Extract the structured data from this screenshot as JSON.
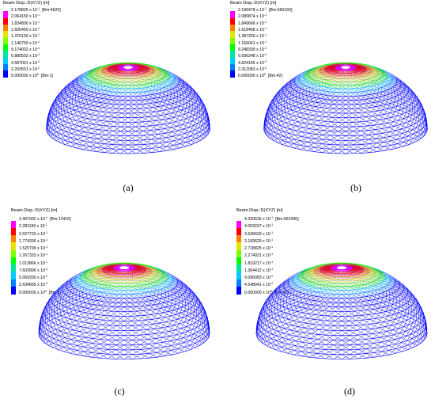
{
  "colors": [
    "#ff00ff",
    "#ff0000",
    "#ff7f00",
    "#e5e500",
    "#7fff00",
    "#00ff00",
    "#00e5a0",
    "#00ccff",
    "#0080ff",
    "#0000ff"
  ],
  "panels": [
    {
      "caption": "(a)",
      "legend_title": "Beam Disp.:D(XYZ)  [m]",
      "ticks": [
        {
          "mant": "2.178826",
          "exp": "-1",
          "tag": "[Bm:4620]"
        },
        {
          "mant": "2.064150",
          "exp": "-1",
          "tag": ""
        },
        {
          "mant": "1.834800",
          "exp": "-1",
          "tag": ""
        },
        {
          "mant": "1.605450",
          "exp": "-1",
          "tag": ""
        },
        {
          "mant": "1.376100",
          "exp": "-1",
          "tag": ""
        },
        {
          "mant": "1.146750",
          "exp": "-1",
          "tag": ""
        },
        {
          "mant": "9.174002",
          "exp": "-2",
          "tag": ""
        },
        {
          "mant": "6.880502",
          "exp": "-2",
          "tag": ""
        },
        {
          "mant": "4.587001",
          "exp": "-2",
          "tag": ""
        },
        {
          "mant": "2.293501",
          "exp": "-2",
          "tag": ""
        },
        {
          "mant": "0.000000",
          "exp": "0",
          "tag": "[Bm:1]"
        }
      ]
    },
    {
      "caption": "(b)",
      "legend_title": "Beam Disp.:D(XYZ)  [m]",
      "ticks": [
        {
          "mant": "2.196478",
          "exp": "-1",
          "tag": "[Bm:560160]"
        },
        {
          "mant": "2.080874",
          "exp": "-1",
          "tag": ""
        },
        {
          "mant": "1.849666",
          "exp": "-1",
          "tag": ""
        },
        {
          "mant": "1.618458",
          "exp": "-1",
          "tag": ""
        },
        {
          "mant": "1.387250",
          "exp": "-1",
          "tag": ""
        },
        {
          "mant": "1.156041",
          "exp": "-1",
          "tag": ""
        },
        {
          "mant": "9.248330",
          "exp": "-2",
          "tag": ""
        },
        {
          "mant": "6.936248",
          "exp": "-2",
          "tag": ""
        },
        {
          "mant": "4.624165",
          "exp": "-2",
          "tag": ""
        },
        {
          "mant": "2.312083",
          "exp": "-2",
          "tag": ""
        },
        {
          "mant": "0.000000",
          "exp": "0",
          "tag": "[Bm:42]"
        }
      ]
    },
    {
      "caption": "(c)",
      "legend_title": "Beam Disp.:D(XYZ)  [m]",
      "ticks": [
        {
          "mant": "2.407932",
          "exp": "-1",
          "tag": "[Bm:12416]"
        },
        {
          "mant": "2.281199",
          "exp": "-1",
          "tag": ""
        },
        {
          "mant": "2.027732",
          "exp": "-1",
          "tag": ""
        },
        {
          "mant": "1.774266",
          "exp": "-1",
          "tag": ""
        },
        {
          "mant": "1.520799",
          "exp": "-1",
          "tag": ""
        },
        {
          "mant": "1.267333",
          "exp": "-1",
          "tag": ""
        },
        {
          "mant": "1.013866",
          "exp": "-1",
          "tag": ""
        },
        {
          "mant": "7.603996",
          "exp": "-2",
          "tag": ""
        },
        {
          "mant": "5.069330",
          "exp": "-2",
          "tag": ""
        },
        {
          "mant": "2.534665",
          "exp": "-2",
          "tag": ""
        },
        {
          "mant": "0.000000",
          "exp": "0",
          "tag": "[Bm:1]"
        }
      ]
    },
    {
      "caption": "(d)",
      "legend_title": "Beam Disp.:D(XYZ)  [m]",
      "ticks": [
        {
          "mant": "4.320639",
          "exp": "-1",
          "tag": "[Bm:562436]"
        },
        {
          "mant": "4.093237",
          "exp": "-1",
          "tag": ""
        },
        {
          "mant": "3.638433",
          "exp": "-1",
          "tag": ""
        },
        {
          "mant": "3.183629",
          "exp": "-1",
          "tag": ""
        },
        {
          "mant": "2.728825",
          "exp": "-1",
          "tag": ""
        },
        {
          "mant": "2.274021",
          "exp": "-1",
          "tag": ""
        },
        {
          "mant": "1.819217",
          "exp": "-1",
          "tag": ""
        },
        {
          "mant": "1.364412",
          "exp": "-1",
          "tag": ""
        },
        {
          "mant": "9.096083",
          "exp": "-2",
          "tag": ""
        },
        {
          "mant": "4.548041",
          "exp": "-2",
          "tag": ""
        },
        {
          "mant": "0.000000",
          "exp": "0",
          "tag": "[Bm:42]"
        }
      ]
    }
  ]
}
